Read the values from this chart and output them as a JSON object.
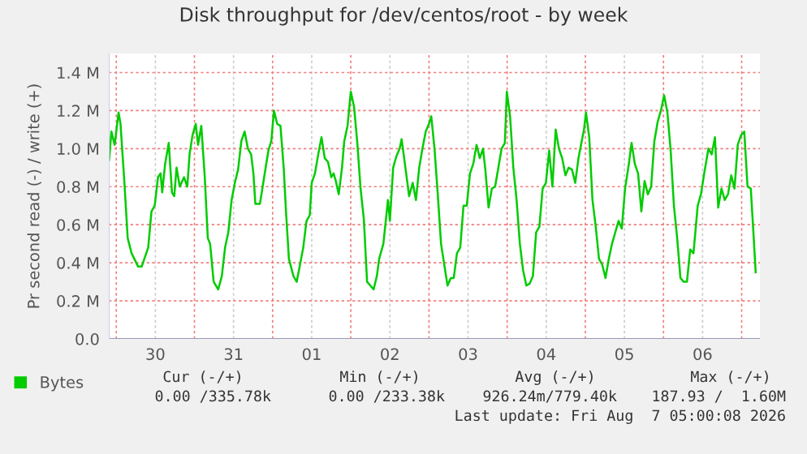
{
  "chart_data": {
    "type": "line",
    "title": "Disk throughput for /dev/centos/root - by week",
    "ylabel": "Pr second read (-) / write (+)",
    "series": [
      {
        "name": "Bytes",
        "color": "#00cc00",
        "x": [
          "2026-07-29T21:48",
          "2026-07-29T22:30",
          "2026-07-29T23:30",
          "2026-07-30T00:42",
          "2026-07-30T01:18",
          "2026-07-30T02:30",
          "2026-07-30T03:30",
          "2026-07-30T04:42",
          "2026-07-30T06:42",
          "2026-07-30T07:48",
          "2026-07-30T09:48",
          "2026-07-30T10:48",
          "2026-07-30T11:48",
          "2026-07-30T12:48",
          "2026-07-30T13:36",
          "2026-07-30T14:06",
          "2026-07-30T15:00",
          "2026-07-30T16:06",
          "2026-07-30T17:06",
          "2026-07-30T17:48",
          "2026-07-30T18:30",
          "2026-07-30T19:30",
          "2026-07-30T20:48",
          "2026-07-30T21:48",
          "2026-07-30T22:30",
          "2026-07-30T23:24",
          "2026-07-31T00:24",
          "2026-07-31T01:06",
          "2026-07-31T02:06",
          "2026-07-31T03:06",
          "2026-07-31T04:06",
          "2026-07-31T04:48",
          "2026-07-31T05:54",
          "2026-07-31T07:18",
          "2026-07-31T08:24",
          "2026-07-31T09:24",
          "2026-07-31T10:24",
          "2026-07-31T11:24",
          "2026-07-31T12:24",
          "2026-07-31T13:24",
          "2026-07-31T14:24",
          "2026-07-31T15:24",
          "2026-07-31T16:24",
          "2026-07-31T17:24",
          "2026-07-31T18:06",
          "2026-07-31T18:42",
          "2026-07-31T20:06",
          "2026-07-31T21:24",
          "2026-07-31T22:42",
          "2026-07-31T23:36",
          "2026-08-01T00:24",
          "2026-08-01T01:24",
          "2026-08-01T02:24",
          "2026-08-01T03:24",
          "2026-08-01T04:06",
          "2026-08-01T05:00",
          "2026-08-01T06:24",
          "2026-08-01T07:24",
          "2026-08-01T08:24",
          "2026-08-01T09:24",
          "2026-08-01T10:24",
          "2026-08-01T11:24",
          "2026-08-01T12:00",
          "2026-08-01T13:00",
          "2026-08-01T14:00",
          "2026-08-01T15:00",
          "2026-08-01T16:00",
          "2026-08-01T17:00",
          "2026-08-01T18:00",
          "2026-08-01T18:42",
          "2026-08-01T19:24",
          "2026-08-01T20:18",
          "2026-08-01T21:18",
          "2026-08-01T22:00",
          "2026-08-01T23:00",
          "2026-08-02T00:00",
          "2026-08-02T01:00",
          "2026-08-02T02:00",
          "2026-08-02T03:00",
          "2026-08-02T04:00",
          "2026-08-02T05:00",
          "2026-08-02T06:00",
          "2026-08-02T07:00",
          "2026-08-02T08:00",
          "2026-08-02T08:42",
          "2026-08-02T10:00",
          "2026-08-02T11:24",
          "2026-08-02T12:00",
          "2026-08-02T13:00",
          "2026-08-02T14:00",
          "2026-08-02T15:00",
          "2026-08-02T15:36",
          "2026-08-02T17:00",
          "2026-08-02T17:54",
          "2026-08-02T19:00",
          "2026-08-02T20:00",
          "2026-08-02T21:00",
          "2026-08-02T22:00",
          "2026-08-02T23:00",
          "2026-08-03T00:00",
          "2026-08-03T00:42",
          "2026-08-03T01:42",
          "2026-08-03T02:42",
          "2026-08-03T03:42",
          "2026-08-03T04:42",
          "2026-08-03T05:42",
          "2026-08-03T06:42",
          "2026-08-03T07:36",
          "2026-08-03T08:36",
          "2026-08-03T09:36",
          "2026-08-03T10:36",
          "2026-08-03T11:36",
          "2026-08-03T12:36",
          "2026-08-03T13:36",
          "2026-08-03T14:36",
          "2026-08-03T15:36",
          "2026-08-03T16:36",
          "2026-08-03T17:18",
          "2026-08-03T18:18",
          "2026-08-03T19:18",
          "2026-08-03T20:18",
          "2026-08-03T21:18",
          "2026-08-03T22:18",
          "2026-08-03T23:18",
          "2026-08-03T23:54",
          "2026-08-04T00:54",
          "2026-08-04T01:54",
          "2026-08-04T02:54",
          "2026-08-04T03:54",
          "2026-08-04T04:54",
          "2026-08-04T05:54",
          "2026-08-04T06:54",
          "2026-08-04T07:54",
          "2026-08-04T08:54",
          "2026-08-04T09:54",
          "2026-08-04T10:54",
          "2026-08-04T11:54",
          "2026-08-04T12:54",
          "2026-08-04T13:54",
          "2026-08-04T14:54",
          "2026-08-04T15:54",
          "2026-08-04T16:54",
          "2026-08-04T17:54",
          "2026-08-04T18:54",
          "2026-08-04T19:54",
          "2026-08-04T20:54",
          "2026-08-04T21:54",
          "2026-08-04T22:54",
          "2026-08-04T23:36",
          "2026-08-05T00:12",
          "2026-08-05T01:12",
          "2026-08-05T02:12",
          "2026-08-05T03:12",
          "2026-08-05T04:12",
          "2026-08-05T05:12",
          "2026-08-05T06:12",
          "2026-08-05T07:12",
          "2026-08-05T08:12",
          "2026-08-05T09:12",
          "2026-08-05T10:12",
          "2026-08-05T11:12",
          "2026-08-05T12:12",
          "2026-08-05T13:12",
          "2026-08-05T14:12",
          "2026-08-05T15:12",
          "2026-08-05T16:12",
          "2026-08-05T17:12",
          "2026-08-05T18:12",
          "2026-08-05T19:12",
          "2026-08-05T20:12",
          "2026-08-05T21:12",
          "2026-08-05T22:12",
          "2026-08-05T23:12",
          "2026-08-06T00:12",
          "2026-08-06T01:12",
          "2026-08-06T02:12",
          "2026-08-06T03:12",
          "2026-08-06T04:12",
          "2026-08-06T05:12",
          "2026-08-06T06:12",
          "2026-08-06T07:12",
          "2026-08-06T08:12",
          "2026-08-06T09:12",
          "2026-08-06T10:30",
          "2026-08-06T11:30",
          "2026-08-06T12:30",
          "2026-08-06T13:48",
          "2026-08-06T14:48",
          "2026-08-06T15:48",
          "2026-08-06T16:48",
          "2026-08-06T17:48",
          "2026-08-06T18:48",
          "2026-08-06T19:48",
          "2026-08-06T20:48",
          "2026-08-06T21:48",
          "2026-08-06T22:48",
          "2026-08-06T23:48",
          "2026-08-07T00:48",
          "2026-08-07T01:48",
          "2026-08-07T02:48",
          "2026-08-07T03:30",
          "2026-08-07T04:18"
        ],
        "values": [
          0.94,
          1.09,
          1.02,
          1.19,
          1.13,
          0.82,
          0.53,
          0.45,
          0.38,
          0.38,
          0.48,
          0.67,
          0.7,
          0.85,
          0.87,
          0.77,
          0.92,
          1.03,
          0.77,
          0.75,
          0.9,
          0.8,
          0.85,
          0.8,
          0.97,
          1.07,
          1.13,
          1.02,
          1.12,
          0.87,
          0.53,
          0.5,
          0.3,
          0.26,
          0.33,
          0.48,
          0.56,
          0.73,
          0.82,
          0.89,
          1.04,
          1.09,
          1.0,
          0.97,
          0.87,
          0.71,
          0.71,
          0.85,
          0.99,
          1.04,
          1.2,
          1.13,
          1.12,
          0.9,
          0.67,
          0.42,
          0.33,
          0.3,
          0.39,
          0.48,
          0.62,
          0.65,
          0.82,
          0.87,
          0.97,
          1.06,
          0.95,
          0.93,
          0.85,
          0.87,
          0.83,
          0.76,
          0.9,
          1.04,
          1.12,
          1.3,
          1.22,
          1.03,
          0.79,
          0.63,
          0.3,
          0.28,
          0.26,
          0.33,
          0.42,
          0.5,
          0.73,
          0.62,
          0.9,
          0.96,
          1.0,
          1.05,
          0.87,
          0.75,
          0.82,
          0.73,
          0.9,
          1.0,
          1.09,
          1.13,
          1.17,
          1.0,
          0.76,
          0.5,
          0.39,
          0.28,
          0.32,
          0.32,
          0.45,
          0.48,
          0.7,
          0.7,
          0.87,
          0.92,
          1.02,
          0.95,
          1.0,
          0.89,
          0.69,
          0.79,
          0.8,
          0.9,
          1.0,
          1.03,
          1.3,
          1.17,
          0.9,
          0.73,
          0.5,
          0.36,
          0.28,
          0.29,
          0.33,
          0.56,
          0.59,
          0.79,
          0.82,
          0.99,
          0.8,
          1.1,
          1.0,
          0.95,
          0.86,
          0.9,
          0.89,
          0.82,
          0.95,
          1.04,
          1.1,
          1.19,
          1.06,
          0.73,
          0.59,
          0.42,
          0.39,
          0.32,
          0.42,
          0.5,
          0.56,
          0.62,
          0.58,
          0.79,
          0.9,
          1.03,
          0.92,
          0.87,
          0.67,
          0.83,
          0.76,
          0.8,
          1.04,
          1.14,
          1.2,
          1.28,
          1.19,
          0.99,
          0.7,
          0.53,
          0.32,
          0.3,
          0.3,
          0.47,
          0.45,
          0.7,
          0.76,
          0.87,
          1.0,
          0.97,
          1.06,
          0.69,
          0.79,
          0.73,
          0.76,
          0.86,
          0.79,
          1.02,
          1.07,
          1.09,
          0.8,
          0.79,
          0.59,
          0.35
        ]
      }
    ],
    "xlim": [
      "2026-07-29T21:42",
      "2026-08-07T05:36"
    ],
    "xticks": [
      {
        "value": "2026-07-30",
        "label": null
      },
      {
        "value": "2026-07-30T12:00",
        "label": "30"
      },
      {
        "value": "2026-07-31",
        "label": null
      },
      {
        "value": "2026-07-31T12:00",
        "label": "31"
      },
      {
        "value": "2026-08-01",
        "label": null
      },
      {
        "value": "2026-08-01T12:00",
        "label": "01"
      },
      {
        "value": "2026-08-02",
        "label": null
      },
      {
        "value": "2026-08-02T12:00",
        "label": "02"
      },
      {
        "value": "2026-08-03",
        "label": null
      },
      {
        "value": "2026-08-03T12:00",
        "label": "03"
      },
      {
        "value": "2026-08-04",
        "label": null
      },
      {
        "value": "2026-08-04T12:00",
        "label": "04"
      },
      {
        "value": "2026-08-05",
        "label": null
      },
      {
        "value": "2026-08-05T12:00",
        "label": "05"
      },
      {
        "value": "2026-08-06",
        "label": null
      },
      {
        "value": "2026-08-06T12:00",
        "label": "06"
      },
      {
        "value": "2026-08-07",
        "label": null
      }
    ],
    "ylim": [
      0,
      1.5
    ],
    "yticks": [
      {
        "value": 0,
        "label": "0.0"
      },
      {
        "value": 0.2,
        "label": "0.2 M"
      },
      {
        "value": 0.4,
        "label": "0.4 M"
      },
      {
        "value": 0.6,
        "label": "0.6 M"
      },
      {
        "value": 0.8,
        "label": "0.8 M"
      },
      {
        "value": 1.0,
        "label": "1.0 M"
      },
      {
        "value": 1.2,
        "label": "1.2 M"
      },
      {
        "value": 1.4,
        "label": "1.4 M"
      }
    ],
    "grid": true,
    "legend": "bottom left",
    "marker": "none",
    "line_style": "solid",
    "annotations": [
      "Cur (-/+)",
      "Min (-/+)",
      "Avg (-/+)",
      "Max (-/+)",
      "0.00 /335.78k",
      "0.00 /233.38k",
      "926.24m/779.40k",
      "187.93 /  1.60M",
      "Last update: Fri Aug  7 05:00:08 2026"
    ]
  }
}
